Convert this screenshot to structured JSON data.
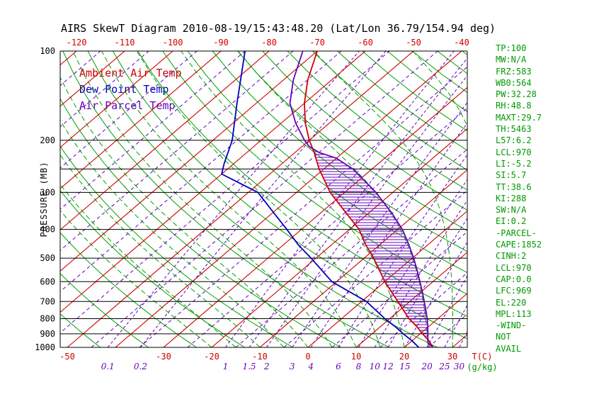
{
  "title": "AIRS SkewT Diagram 2010-08-19/15:43:48.20 (Lat/Lon 36.79/154.94 deg)",
  "legend": {
    "items": [
      {
        "label": "Ambient Air Temp",
        "color": "#cc0000"
      },
      {
        "label": "Dew Point Temp",
        "color": "#0000bb"
      },
      {
        "label": "Air Parcel Temp",
        "color": "#6600bb"
      }
    ]
  },
  "pressure_axis": {
    "title": "PRESSURE (MB)",
    "labels": [
      100,
      200,
      300,
      400,
      500,
      600,
      700,
      800,
      900,
      1000
    ],
    "lines": [
      100,
      200,
      250,
      300,
      400,
      500,
      600,
      700,
      800,
      900,
      1000
    ],
    "range": [
      100,
      1000
    ]
  },
  "temp_axis": {
    "unit_label": "T(C)",
    "top_labels": [
      -120,
      -110,
      -100,
      -90,
      -80,
      -70,
      -60,
      -50,
      -40
    ],
    "bottom_labels": [
      -50,
      -30,
      -20,
      -10,
      0,
      10,
      20,
      30
    ],
    "range": [
      -120,
      40
    ]
  },
  "mixing_axis": {
    "unit_label": "(g/kg)",
    "values": [
      0.1,
      0.2,
      1,
      1.5,
      2,
      3,
      4,
      6,
      8,
      10,
      12,
      15,
      20,
      25,
      30
    ]
  },
  "stats_panel": {
    "color": "#009900",
    "lines": [
      "TP:100",
      "MW:N/A",
      "FRZ:583",
      "WB0:564",
      "PW:32.28",
      "RH:48.8",
      "MAXT:29.7",
      "TH:5463",
      "L57:6.2",
      "LCL:970",
      "LI:-5.2",
      "SI:5.7",
      "TT:38.6",
      "KI:288",
      "SW:N/A",
      "EI:0.2",
      "-PARCEL-",
      "CAPE:1852",
      "CINH:2",
      "LCL:970",
      "CAP:0.0",
      "LFC:969",
      "EL:220",
      "MPL:113",
      "-WIND-",
      "NOT",
      "AVAIL"
    ]
  },
  "chart_data": {
    "type": "skewt-log-p",
    "title": "AIRS SkewT Diagram 2010-08-19/15:43:48.20 (Lat/Lon 36.79/154.94 deg)",
    "xlabel": "T(C)",
    "ylabel": "PRESSURE (MB)",
    "pressure_range_mb": [
      100,
      1000
    ],
    "temp_range_c": [
      -120,
      40
    ],
    "grid": {
      "isotherms_c": {
        "min": -120,
        "max": 40,
        "step": 10,
        "color": "#cc0000",
        "style": "solid"
      },
      "intermediate_isotherms_c": {
        "min": -115,
        "max": 35,
        "step": 10,
        "color": "#6600bb",
        "style": "dashed"
      },
      "dry_adiabats_k": {
        "min": 220,
        "max": 450,
        "step": 10,
        "color": "#00a000",
        "style": "solid"
      },
      "moist_adiabats_c": {
        "min": -20,
        "max": 40,
        "step": 5,
        "color": "#00a000",
        "style": "dashed"
      },
      "mixing_ratio_g_kg": [
        0.1,
        0.2,
        1,
        1.5,
        2,
        3,
        4,
        6,
        8,
        10,
        12,
        15,
        20,
        25,
        30
      ]
    },
    "series": [
      {
        "name": "Ambient Air Temp",
        "color": "#cc0000",
        "points_p_t": [
          [
            1000,
            26
          ],
          [
            970,
            24.5
          ],
          [
            950,
            23.5
          ],
          [
            900,
            20.5
          ],
          [
            850,
            17.5
          ],
          [
            800,
            14
          ],
          [
            700,
            7.5
          ],
          [
            600,
            0
          ],
          [
            500,
            -8
          ],
          [
            450,
            -13
          ],
          [
            400,
            -18
          ],
          [
            350,
            -25
          ],
          [
            300,
            -33
          ],
          [
            250,
            -41
          ],
          [
            220,
            -46
          ],
          [
            200,
            -50
          ],
          [
            175,
            -55
          ],
          [
            150,
            -60
          ],
          [
            125,
            -65
          ],
          [
            100,
            -70
          ]
        ]
      },
      {
        "name": "Dew Point Temp",
        "color": "#0000bb",
        "points_p_t": [
          [
            1000,
            23
          ],
          [
            950,
            20
          ],
          [
            900,
            16.5
          ],
          [
            850,
            13
          ],
          [
            800,
            9
          ],
          [
            700,
            1
          ],
          [
            600,
            -11
          ],
          [
            500,
            -21
          ],
          [
            450,
            -27
          ],
          [
            400,
            -33
          ],
          [
            350,
            -40
          ],
          [
            300,
            -48
          ],
          [
            260,
            -60
          ],
          [
            240,
            -62
          ],
          [
            200,
            -66
          ],
          [
            150,
            -74
          ],
          [
            100,
            -85
          ]
        ]
      },
      {
        "name": "Air Parcel Temp",
        "color": "#6600bb",
        "points_p_t": [
          [
            1000,
            26
          ],
          [
            970,
            24
          ],
          [
            950,
            23.3
          ],
          [
            900,
            21.6
          ],
          [
            850,
            19.8
          ],
          [
            800,
            17.8
          ],
          [
            750,
            15.5
          ],
          [
            700,
            13
          ],
          [
            650,
            10.3
          ],
          [
            600,
            7.3
          ],
          [
            550,
            4
          ],
          [
            500,
            0.3
          ],
          [
            450,
            -4
          ],
          [
            400,
            -9
          ],
          [
            350,
            -15.5
          ],
          [
            300,
            -23.5
          ],
          [
            275,
            -28.5
          ],
          [
            250,
            -34
          ],
          [
            230,
            -40
          ],
          [
            220,
            -45
          ],
          [
            210,
            -48.5
          ],
          [
            200,
            -51
          ],
          [
            175,
            -57
          ],
          [
            150,
            -63
          ],
          [
            125,
            -68
          ],
          [
            100,
            -73
          ]
        ]
      }
    ],
    "cape_hatch": {
      "between_series": [
        2,
        0
      ],
      "p_top": 218,
      "p_bottom": 948,
      "color": "#6600bb"
    }
  }
}
